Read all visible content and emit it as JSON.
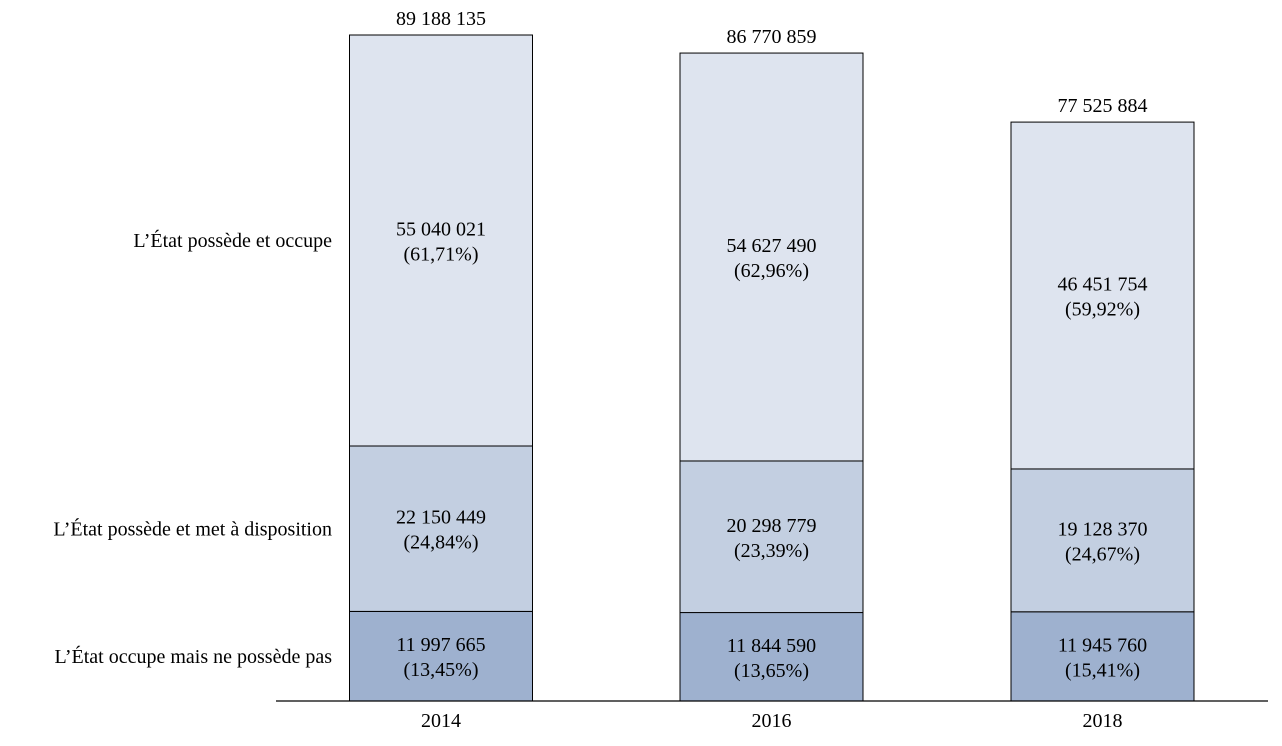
{
  "chart_data": {
    "type": "bar",
    "stacked": true,
    "categories": [
      "2014",
      "2016",
      "2018"
    ],
    "series": [
      {
        "name": "L’État occupe mais ne possède pas",
        "values": [
          11997665,
          11844590,
          11945760
        ],
        "value_labels": [
          "11 997 665",
          "11 844 590",
          "11 945 760"
        ],
        "pct_labels": [
          "(13,45%)",
          "(13,65%)",
          "(15,41%)"
        ],
        "color": "#9eb1cf"
      },
      {
        "name": "L’État possède et met à disposition",
        "values": [
          22150449,
          20298779,
          19128370
        ],
        "value_labels": [
          "22 150 449",
          "20 298 779",
          "19 128 370"
        ],
        "pct_labels": [
          "(24,84%)",
          "(23,39%)",
          "(24,67%)"
        ],
        "color": "#c3cfe1"
      },
      {
        "name": "L’État possède et occupe",
        "values": [
          55040021,
          54627490,
          46451754
        ],
        "value_labels": [
          "55 040 021",
          "54 627 490",
          "46 451 754"
        ],
        "pct_labels": [
          "(61,71%)",
          "(62,96%)",
          "(59,92%)"
        ],
        "color": "#dee4ef"
      }
    ],
    "totals": [
      89188135,
      86770859,
      77525884
    ],
    "total_labels": [
      "89 188 135",
      "86 770 859",
      "77 525 884"
    ],
    "legend_placement": "left, aligned with segments",
    "grid": false,
    "ylim": [
      0,
      89188135
    ]
  }
}
